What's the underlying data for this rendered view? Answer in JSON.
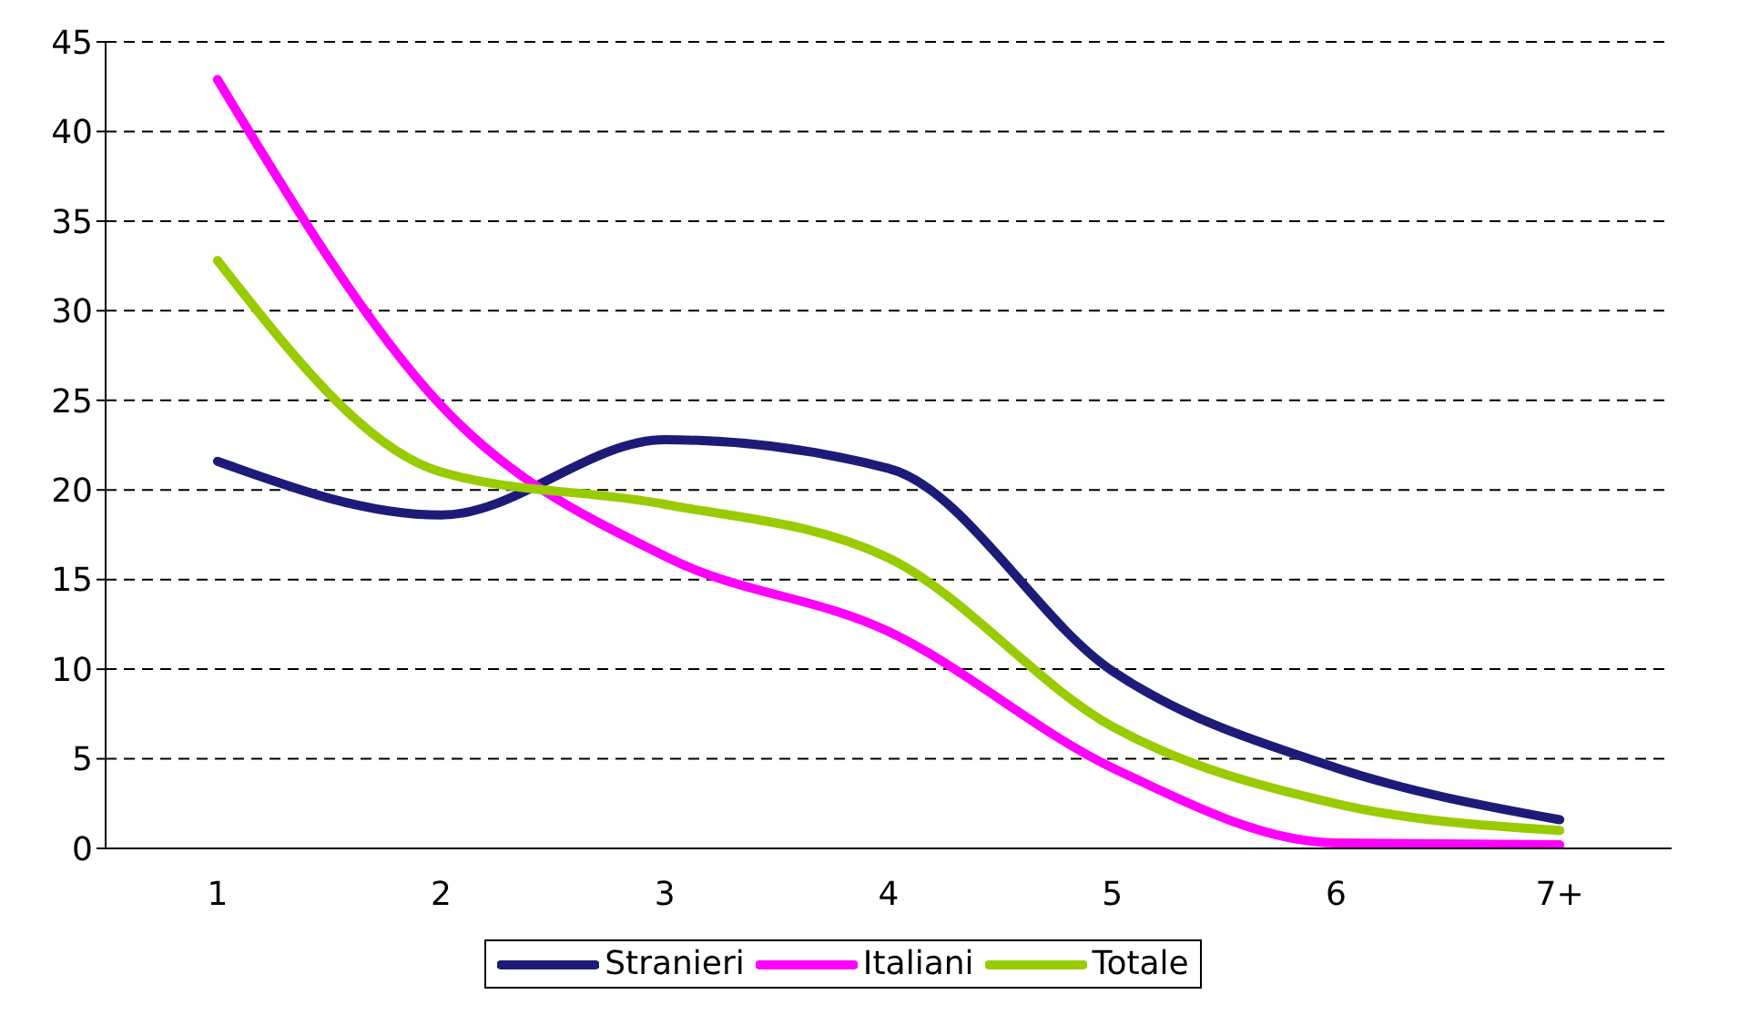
{
  "chart_data": {
    "type": "line",
    "categories": [
      "1",
      "2",
      "3",
      "4",
      "5",
      "6",
      "7+"
    ],
    "series": [
      {
        "name": "Stranieri",
        "color": "#1c1c78",
        "values": [
          21.6,
          18.6,
          22.8,
          21.2,
          9.9,
          4.5,
          1.6
        ]
      },
      {
        "name": "Italiani",
        "color": "#ff00ff",
        "values": [
          42.9,
          24.7,
          16.3,
          12.1,
          4.5,
          0.3,
          0.2
        ]
      },
      {
        "name": "Totale",
        "color": "#99cc00",
        "values": [
          32.8,
          21.0,
          19.2,
          16.2,
          6.8,
          2.5,
          1.0
        ]
      }
    ],
    "ylim": [
      0,
      45
    ],
    "yticks": [
      0,
      5,
      10,
      15,
      20,
      25,
      30,
      35,
      40,
      45
    ],
    "grid": "y",
    "legend": "bottom",
    "marker": "none",
    "line_style": "solid"
  }
}
